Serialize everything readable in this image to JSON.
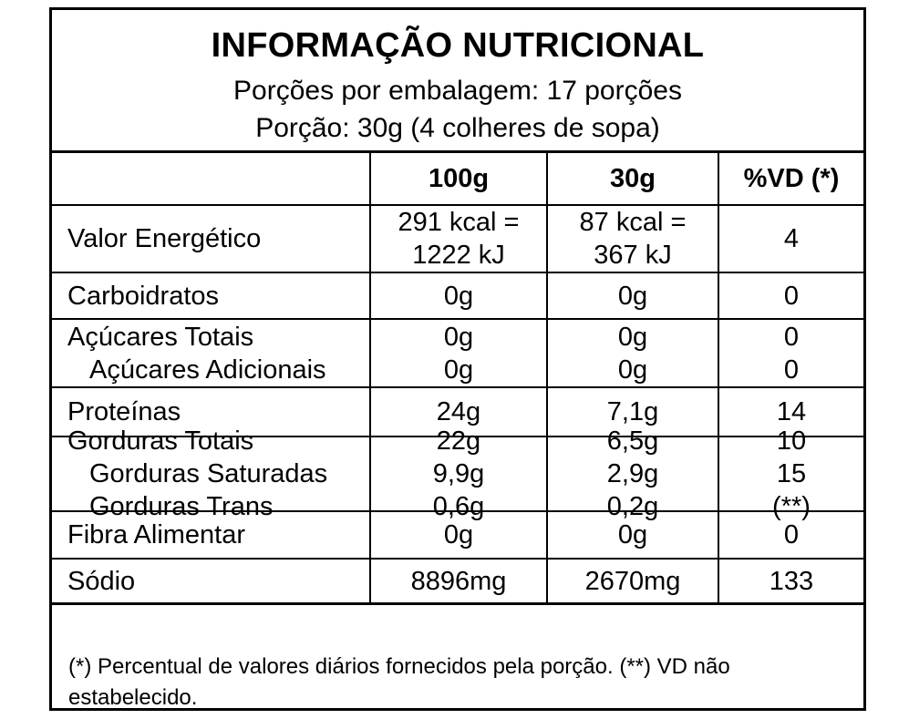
{
  "title": "INFORMAÇÃO NUTRICIONAL",
  "servings_per_package": "Porções por embalagem: 17 porções",
  "serving_size": "Porção: 30g (4 colheres de sopa)",
  "columns": [
    "",
    "100g",
    "30g",
    "%VD (*)"
  ],
  "rows": [
    {
      "name": [
        "Valor Energético"
      ],
      "v100": [
        "291 kcal =",
        "1222 kJ"
      ],
      "v30": [
        "87 kcal =",
        "367 kJ"
      ],
      "vd": [
        "4"
      ]
    },
    {
      "name": [
        "Carboidratos"
      ],
      "v100": [
        "0g"
      ],
      "v30": [
        "0g"
      ],
      "vd": [
        "0"
      ]
    },
    {
      "name": [
        "Açúcares Totais",
        "Açúcares Adicionais"
      ],
      "v100": [
        "0g",
        "0g"
      ],
      "v30": [
        "0g",
        "0g"
      ],
      "vd": [
        "0",
        "0"
      ]
    },
    {
      "name": [
        "Proteínas"
      ],
      "v100": [
        "24g"
      ],
      "v30": [
        "7,1g"
      ],
      "vd": [
        "14"
      ]
    },
    {
      "name": [
        "Gorduras Totais",
        "Gorduras Saturadas",
        "Gorduras Trans"
      ],
      "v100": [
        "22g",
        "9,9g",
        "0,6g"
      ],
      "v30": [
        "6,5g",
        "2,9g",
        "0,2g"
      ],
      "vd": [
        "10",
        "15",
        "(**)"
      ]
    },
    {
      "name": [
        "Fibra Alimentar"
      ],
      "v100": [
        "0g"
      ],
      "v30": [
        "0g"
      ],
      "vd": [
        "0"
      ]
    },
    {
      "name": [
        "Sódio"
      ],
      "v100": [
        "8896mg"
      ],
      "v30": [
        "2670mg"
      ],
      "vd": [
        "133"
      ]
    }
  ],
  "footnote": " (*) Percentual de valores diários fornecidos pela porção. (**) VD não estabelecido."
}
